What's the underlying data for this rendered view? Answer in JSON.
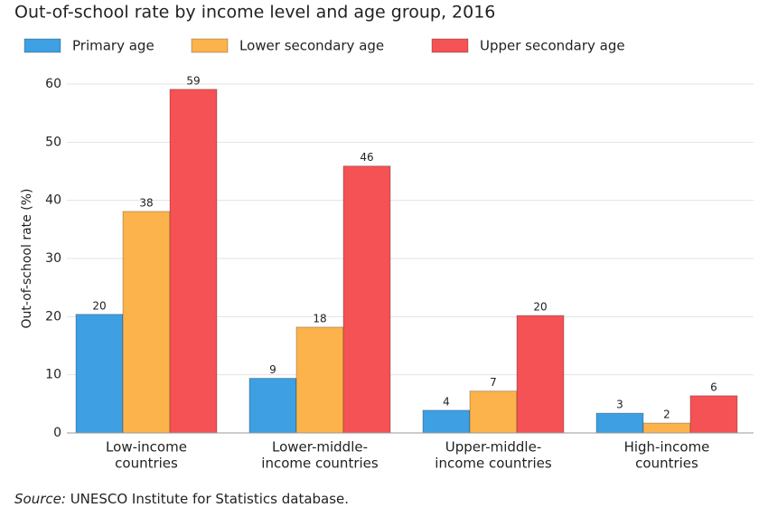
{
  "chart_data": {
    "type": "bar",
    "title": "Out-of-school rate by income level and age group, 2016",
    "y_label": "Out-of-school rate (%)",
    "categories": [
      [
        "Low-income",
        "countries"
      ],
      [
        "Lower-middle-",
        "income countries"
      ],
      [
        "Upper-middle-",
        "income countries"
      ],
      [
        "High-income",
        "countries"
      ]
    ],
    "series": [
      {
        "name": "Primary age",
        "color": "#3e9fe3",
        "values": [
          20.4,
          9.4,
          3.9,
          3.4
        ],
        "value_labels": [
          "20",
          "9",
          "4",
          "3"
        ]
      },
      {
        "name": "Lower secondary age",
        "color": "#fcb34b",
        "values": [
          38.1,
          18.2,
          7.2,
          1.7
        ],
        "value_labels": [
          "38",
          "18",
          "7",
          "2"
        ]
      },
      {
        "name": "Upper secondary age",
        "color": "#f55255",
        "values": [
          59.1,
          45.9,
          20.2,
          6.4
        ],
        "value_labels": [
          "59",
          "46",
          "20",
          "6"
        ]
      }
    ],
    "ylim": [
      0,
      60
    ],
    "yticks": [
      0,
      10,
      20,
      30,
      40,
      50,
      60
    ],
    "grid": true,
    "source": {
      "label": "Source:",
      "text": "UNESCO Institute for Statistics database."
    }
  }
}
